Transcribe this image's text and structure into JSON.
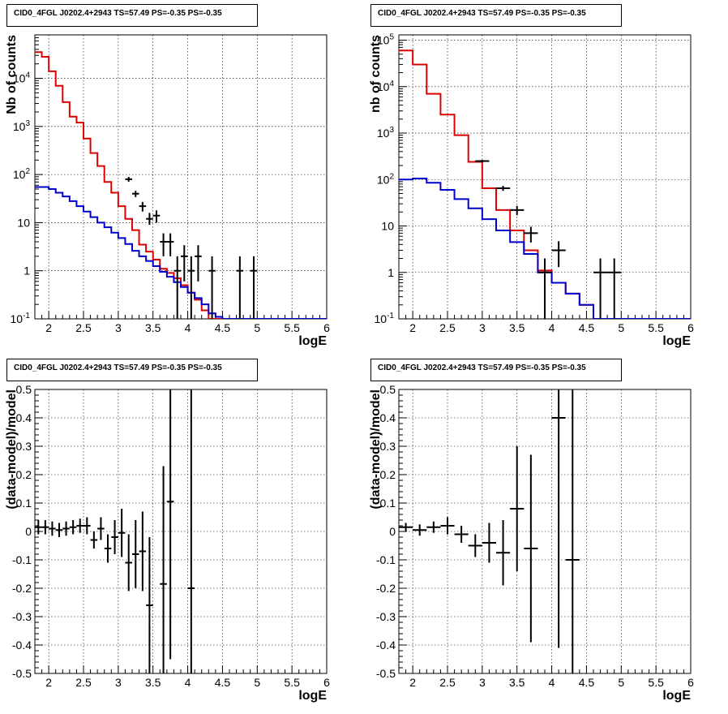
{
  "pads": [
    {
      "title": "CID0_4FGL J0202.4+2943 TS=57.49 PS=-0.35 PS=-0.35",
      "chart_data": {
        "type": "line",
        "title": "CID0_4FGL J0202.4+2943 TS=57.49 PS=-0.35 PS=-0.35",
        "xlabel": "logE",
        "ylabel": "Nb of counts",
        "xlim": [
          1.8,
          6.0
        ],
        "ylim": [
          0.1,
          80000
        ],
        "y_scale": "log",
        "grid": true,
        "x_ticks": [
          "2",
          "2.5",
          "3",
          "3.5",
          "4",
          "4.5",
          "5",
          "5.5",
          "6"
        ],
        "y_ticks": [
          "10^-1",
          "1",
          "10",
          "10^2",
          "10^3",
          "10^4"
        ],
        "bin_width": 0.1,
        "series": [
          {
            "color": "#dd0000",
            "style": "step",
            "x_start": 1.8,
            "values": [
              35000,
              28000,
              14000,
              7000,
              3200,
              1600,
              1200,
              560,
              280,
              150,
              70,
              42,
              22,
              12,
              7,
              3.5,
              2.5,
              1.7,
              1.1,
              0.9,
              0.7,
              0.5,
              0.35,
              0.25,
              0.15,
              0.1,
              0.1,
              0.1,
              0.1,
              0.1,
              0.1,
              0.1,
              0.1,
              0.1,
              0.1,
              0.1,
              0.1,
              0.1,
              0.1,
              0.1,
              0.1,
              0.1
            ]
          },
          {
            "color": "#0000cc",
            "style": "step",
            "x_start": 1.8,
            "values": [
              55,
              55,
              50,
              42,
              35,
              28,
              22,
              17,
              13,
              10,
              8,
              6.2,
              4.8,
              3.6,
              2.6,
              2.0,
              1.6,
              1.25,
              0.95,
              0.75,
              0.58,
              0.46,
              0.35,
              0.27,
              0.2,
              0.13,
              0.11,
              0.1,
              0.1,
              0.1,
              0.1,
              0.1,
              0.1,
              0.1,
              0.1,
              0.1,
              0.1,
              0.1,
              0.1,
              0.1,
              0.1,
              0.1
            ]
          }
        ],
        "points": [
          {
            "x": 3.15,
            "y": 80,
            "lo": 71,
            "hi": 89
          },
          {
            "x": 3.25,
            "y": 40,
            "lo": 34,
            "hi": 46
          },
          {
            "x": 3.35,
            "y": 22,
            "lo": 17,
            "hi": 27
          },
          {
            "x": 3.45,
            "y": 12,
            "lo": 9,
            "hi": 16
          },
          {
            "x": 3.55,
            "y": 14,
            "lo": 10,
            "hi": 18
          },
          {
            "x": 3.65,
            "y": 4,
            "lo": 2,
            "hi": 6
          },
          {
            "x": 3.75,
            "y": 4,
            "lo": 2,
            "hi": 6
          },
          {
            "x": 3.85,
            "y": 1,
            "lo": 0.1,
            "hi": 2
          },
          {
            "x": 3.95,
            "y": 2,
            "lo": 0.6,
            "hi": 3.4
          },
          {
            "x": 4.05,
            "y": 1,
            "lo": 0.1,
            "hi": 2
          },
          {
            "x": 4.15,
            "y": 2,
            "lo": 0.6,
            "hi": 3.4
          },
          {
            "x": 4.35,
            "y": 1,
            "lo": 0.1,
            "hi": 2
          },
          {
            "x": 4.75,
            "y": 1,
            "lo": 0.1,
            "hi": 2
          },
          {
            "x": 4.95,
            "y": 1,
            "lo": 0.1,
            "hi": 2
          }
        ]
      }
    },
    {
      "title": "CID0_4FGL J0202.4+2943 TS=57.49 PS=-0.35 PS=-0.35",
      "chart_data": {
        "type": "line",
        "title": "CID0_4FGL J0202.4+2943 TS=57.49 PS=-0.35 PS=-0.35",
        "xlabel": "logE",
        "ylabel": "nb of counts",
        "xlim": [
          1.8,
          6.0
        ],
        "ylim": [
          0.1,
          130000
        ],
        "y_scale": "log",
        "grid": true,
        "x_ticks": [
          "2",
          "2.5",
          "3",
          "3.5",
          "4",
          "4.5",
          "5",
          "5.5",
          "6"
        ],
        "y_ticks": [
          "10^-1",
          "1",
          "10",
          "10^2",
          "10^3",
          "10^4",
          "10^5"
        ],
        "bin_width": 0.2,
        "series": [
          {
            "color": "#dd0000",
            "style": "step",
            "x_start": 1.8,
            "values": [
              60000,
              30000,
              7000,
              2500,
              900,
              240,
              65,
              22,
              8,
              3,
              1.1,
              0.6,
              0.35,
              0.2,
              0.1,
              0.1,
              0.1,
              0.1,
              0.1,
              0.1,
              0.1
            ]
          },
          {
            "color": "#0000cc",
            "style": "step",
            "x_start": 1.8,
            "values": [
              100,
              105,
              85,
              60,
              38,
              24,
              14,
              8,
              4.5,
              2.5,
              1.0,
              0.6,
              0.35,
              0.2,
              0.1,
              0.1,
              0.1,
              0.1,
              0.1,
              0.1,
              0.1
            ]
          }
        ],
        "points": [
          {
            "x": 3.0,
            "y": 250,
            "lo": 235,
            "hi": 265
          },
          {
            "x": 3.3,
            "y": 65,
            "lo": 57,
            "hi": 73
          },
          {
            "x": 3.5,
            "y": 22,
            "lo": 17,
            "hi": 27
          },
          {
            "x": 3.7,
            "y": 7,
            "lo": 4.4,
            "hi": 9.6
          },
          {
            "x": 3.9,
            "y": 1,
            "lo": 0.1,
            "hi": 2
          },
          {
            "x": 4.1,
            "y": 3,
            "lo": 1.3,
            "hi": 4.7
          },
          {
            "x": 4.7,
            "y": 1,
            "lo": 0.1,
            "hi": 2
          },
          {
            "x": 4.9,
            "y": 1,
            "lo": 0.1,
            "hi": 2
          }
        ]
      }
    },
    {
      "title": "CID0_4FGL J0202.4+2943 TS=57.49 PS=-0.35 PS=-0.35",
      "chart_data": {
        "type": "scatter",
        "title": "CID0_4FGL J0202.4+2943 TS=57.49 PS=-0.35 PS=-0.35",
        "xlabel": "logE",
        "ylabel": "(data-model)/model",
        "xlim": [
          1.8,
          6.0
        ],
        "ylim": [
          -0.5,
          0.5
        ],
        "y_scale": "linear",
        "grid": true,
        "x_ticks": [
          "2",
          "2.5",
          "3",
          "3.5",
          "4",
          "4.5",
          "5",
          "5.5",
          "6"
        ],
        "y_ticks": [
          "-0.5",
          "-0.4",
          "-0.3",
          "-0.2",
          "-0.1",
          "0",
          "0.1",
          "0.2",
          "0.3",
          "0.4",
          "0.5"
        ],
        "bin_width": 0.1,
        "points": [
          {
            "x": 1.85,
            "y": 0.015,
            "lo": -0.01,
            "hi": 0.04
          },
          {
            "x": 1.95,
            "y": 0.015,
            "lo": -0.01,
            "hi": 0.04
          },
          {
            "x": 2.05,
            "y": 0.01,
            "lo": -0.015,
            "hi": 0.035
          },
          {
            "x": 2.15,
            "y": 0.005,
            "lo": -0.02,
            "hi": 0.03
          },
          {
            "x": 2.25,
            "y": 0.01,
            "lo": -0.015,
            "hi": 0.035
          },
          {
            "x": 2.35,
            "y": 0.015,
            "lo": -0.01,
            "hi": 0.04
          },
          {
            "x": 2.45,
            "y": 0.02,
            "lo": -0.005,
            "hi": 0.045
          },
          {
            "x": 2.55,
            "y": 0.02,
            "lo": -0.01,
            "hi": 0.05
          },
          {
            "x": 2.65,
            "y": -0.03,
            "lo": -0.06,
            "hi": 0.0
          },
          {
            "x": 2.75,
            "y": 0.01,
            "lo": -0.03,
            "hi": 0.05
          },
          {
            "x": 2.85,
            "y": -0.06,
            "lo": -0.11,
            "hi": -0.01
          },
          {
            "x": 2.95,
            "y": -0.02,
            "lo": -0.08,
            "hi": 0.04
          },
          {
            "x": 3.05,
            "y": -0.005,
            "lo": -0.09,
            "hi": 0.08
          },
          {
            "x": 3.15,
            "y": -0.11,
            "lo": -0.21,
            "hi": -0.01
          },
          {
            "x": 3.25,
            "y": -0.08,
            "lo": -0.2,
            "hi": 0.04
          },
          {
            "x": 3.35,
            "y": -0.07,
            "lo": -0.21,
            "hi": 0.07
          },
          {
            "x": 3.45,
            "y": -0.26,
            "lo": -0.5,
            "hi": -0.02
          },
          {
            "x": 3.65,
            "y": -0.185,
            "lo": -0.5,
            "hi": 0.23
          },
          {
            "x": 3.75,
            "y": 0.105,
            "lo": -0.45,
            "hi": 0.5
          },
          {
            "x": 4.05,
            "y": -0.2,
            "lo": -0.5,
            "hi": 0.5
          }
        ]
      }
    },
    {
      "title": "CID0_4FGL J0202.4+2943 TS=57.49 PS=-0.35 PS=-0.35",
      "chart_data": {
        "type": "scatter",
        "title": "CID0_4FGL J0202.4+2943 TS=57.49 PS=-0.35 PS=-0.35",
        "xlabel": "logE",
        "ylabel": "(data-model)/model",
        "xlim": [
          1.8,
          6.0
        ],
        "ylim": [
          -0.5,
          0.5
        ],
        "y_scale": "linear",
        "grid": true,
        "x_ticks": [
          "2",
          "2.5",
          "3",
          "3.5",
          "4",
          "4.5",
          "5",
          "5.5",
          "6"
        ],
        "y_ticks": [
          "-0.5",
          "-0.4",
          "-0.3",
          "-0.2",
          "-0.1",
          "0",
          "0.1",
          "0.2",
          "0.3",
          "0.4",
          "0.5"
        ],
        "bin_width": 0.2,
        "points": [
          {
            "x": 1.9,
            "y": 0.015,
            "lo": 0.0,
            "hi": 0.03
          },
          {
            "x": 2.1,
            "y": 0.005,
            "lo": -0.015,
            "hi": 0.025
          },
          {
            "x": 2.3,
            "y": 0.015,
            "lo": -0.005,
            "hi": 0.035
          },
          {
            "x": 2.5,
            "y": 0.02,
            "lo": -0.01,
            "hi": 0.05
          },
          {
            "x": 2.7,
            "y": -0.01,
            "lo": -0.04,
            "hi": 0.02
          },
          {
            "x": 2.9,
            "y": -0.05,
            "lo": -0.09,
            "hi": -0.01
          },
          {
            "x": 3.1,
            "y": -0.04,
            "lo": -0.11,
            "hi": 0.03
          },
          {
            "x": 3.3,
            "y": -0.075,
            "lo": -0.19,
            "hi": 0.04
          },
          {
            "x": 3.5,
            "y": 0.08,
            "lo": -0.14,
            "hi": 0.3
          },
          {
            "x": 3.7,
            "y": -0.06,
            "lo": -0.39,
            "hi": 0.27
          },
          {
            "x": 4.1,
            "y": 0.4,
            "lo": -0.41,
            "hi": 0.5
          },
          {
            "x": 4.3,
            "y": -0.1,
            "lo": -0.5,
            "hi": 0.5
          }
        ]
      }
    }
  ]
}
